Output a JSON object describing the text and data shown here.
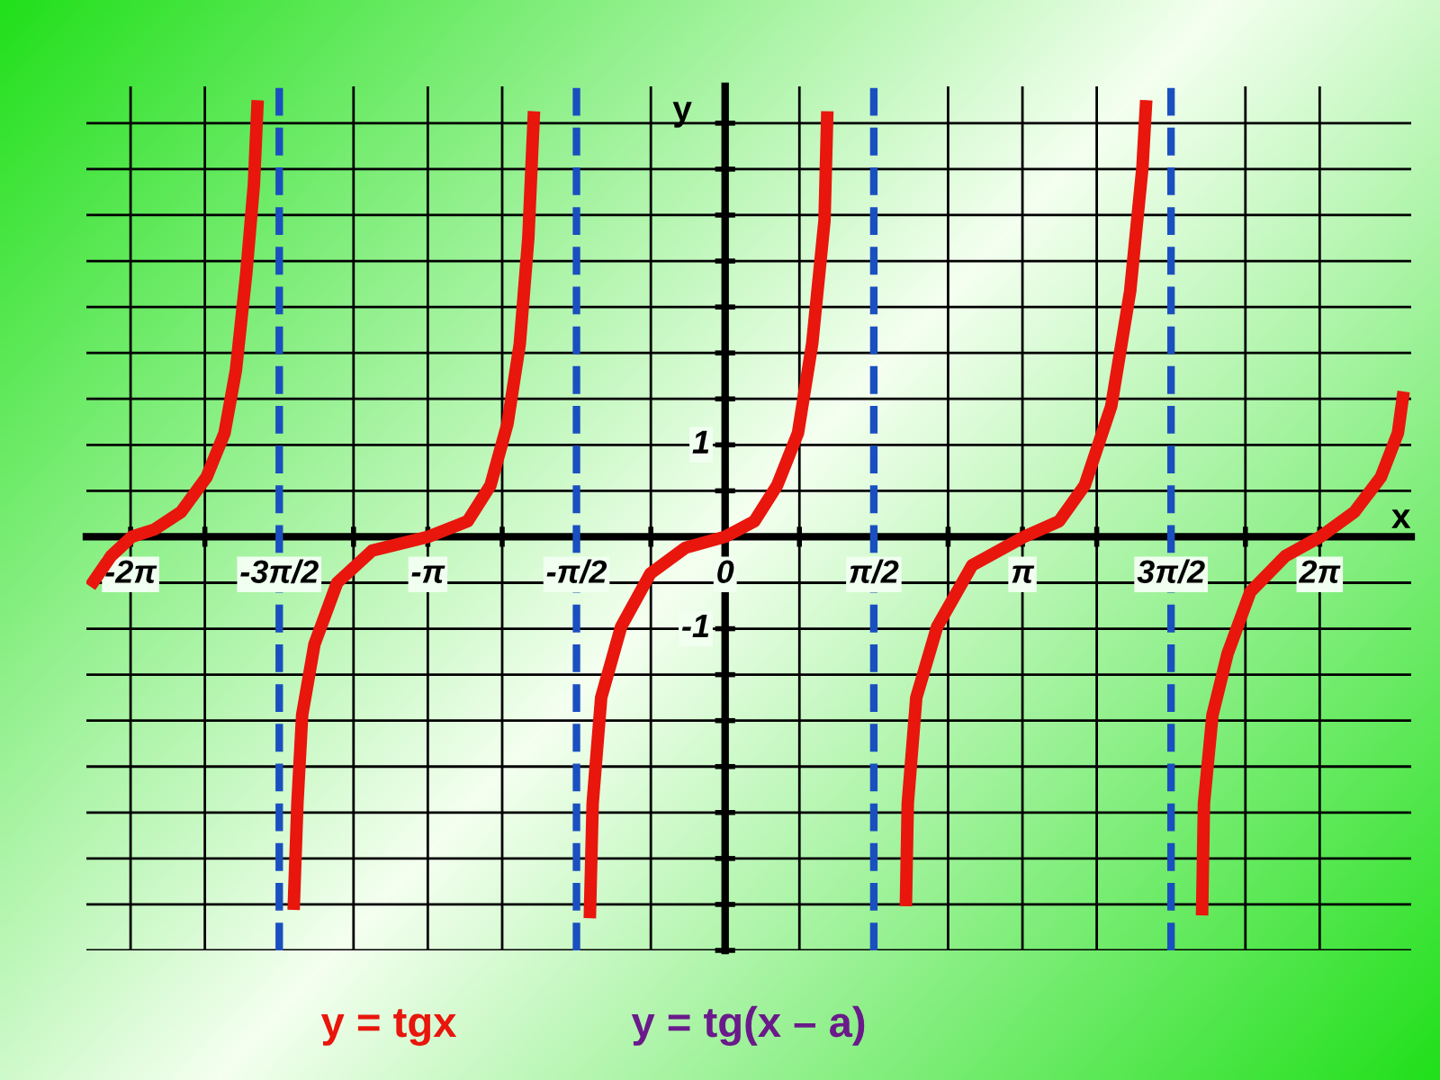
{
  "chart_data": {
    "type": "line",
    "xlabel": "x",
    "ylabel": "y",
    "series": [
      {
        "name": "y = tgx",
        "color": "#e8160c",
        "x": [
          -6.71,
          -6.49,
          -6.27,
          -6.03,
          -5.75,
          -5.48,
          -5.29,
          -5.17,
          -5.06,
          -4.98,
          -4.94,
          -4.7,
          -4.56,
          -4.52,
          -4.47,
          -4.34,
          -4.1,
          -3.73,
          -3.14,
          -2.72,
          -2.48,
          -2.3,
          -2.17,
          -2.08,
          -2.02,
          -1.6,
          -1.43,
          -1.4,
          -1.31,
          -1.1,
          -0.79,
          -0.42,
          0,
          0.31,
          0.55,
          0.77,
          0.92,
          1.05,
          1.08,
          1.6,
          1.91,
          1.93,
          2.02,
          2.24,
          2.61,
          3.16,
          3.53,
          3.8,
          4.08,
          4.28,
          4.41,
          4.45,
          4.8,
          5.04,
          5.06,
          5.15,
          5.31,
          5.55,
          5.92,
          6.29,
          6.65,
          6.93,
          7.11,
          7.17
        ],
        "values": [
          -0.54,
          -0.21,
          0,
          0.08,
          0.27,
          0.65,
          1.13,
          1.81,
          2.87,
          3.83,
          4.75,
          null,
          -4.06,
          -2.9,
          -1.94,
          -1.17,
          -0.5,
          -0.15,
          0,
          0.17,
          0.56,
          1.23,
          2.1,
          3.25,
          4.63,
          null,
          -4.15,
          -2.9,
          -1.75,
          -0.98,
          -0.4,
          -0.12,
          0,
          0.17,
          0.56,
          1.13,
          2.1,
          3.44,
          4.63,
          null,
          -4.02,
          -2.9,
          -1.75,
          -0.98,
          -0.31,
          0,
          0.17,
          0.56,
          1.42,
          2.67,
          4.02,
          4.75,
          null,
          -4.12,
          -2.9,
          -1.94,
          -1.27,
          -0.6,
          -0.21,
          0,
          0.27,
          0.65,
          1.13,
          1.58
        ]
      }
    ],
    "ref_lines": [
      {
        "axis": "x",
        "value": -4.712,
        "label": "-3π/2",
        "color": "#1a4fc0",
        "line_style": "dashed"
      },
      {
        "axis": "x",
        "value": -1.571,
        "label": "-π/2",
        "color": "#1a4fc0",
        "line_style": "dashed"
      },
      {
        "axis": "x",
        "value": 1.571,
        "label": "π/2",
        "color": "#1a4fc0",
        "line_style": "dashed"
      },
      {
        "axis": "x",
        "value": 4.712,
        "label": "3π/2",
        "color": "#1a4fc0",
        "line_style": "dashed"
      }
    ],
    "annotations": [
      "y = tg(x – a)"
    ],
    "xlim": [
      -6.75,
      7.25
    ],
    "ylim": [
      -4.5,
      4.9
    ],
    "xticks": [
      {
        "value": -6.283,
        "label": "-2π"
      },
      {
        "value": -5.498,
        "label": null
      },
      {
        "value": -3.927,
        "label": null
      },
      {
        "value": -3.142,
        "label": "-π"
      },
      {
        "value": -2.356,
        "label": null
      },
      {
        "value": -0.785,
        "label": null
      },
      {
        "value": 0,
        "label": "0"
      },
      {
        "value": 0.785,
        "label": null
      },
      {
        "value": 2.356,
        "label": null
      },
      {
        "value": 3.142,
        "label": "π"
      },
      {
        "value": 3.927,
        "label": null
      },
      {
        "value": 5.498,
        "label": null
      },
      {
        "value": 6.283,
        "label": "2π"
      }
    ],
    "yticks": [
      {
        "value": -4.5,
        "label": null
      },
      {
        "value": -4,
        "label": null
      },
      {
        "value": -3.5,
        "label": null
      },
      {
        "value": -3,
        "label": null
      },
      {
        "value": -2.5,
        "label": null
      },
      {
        "value": -2,
        "label": null
      },
      {
        "value": -1.5,
        "label": null
      },
      {
        "value": -1,
        "label": "-1"
      },
      {
        "value": -0.5,
        "label": null
      },
      {
        "value": 0.5,
        "label": null
      },
      {
        "value": 1,
        "label": "1"
      },
      {
        "value": 1.5,
        "label": null
      },
      {
        "value": 2,
        "label": null
      },
      {
        "value": 2.5,
        "label": null
      },
      {
        "value": 3,
        "label": null
      },
      {
        "value": 3.5,
        "label": null
      },
      {
        "value": 4,
        "label": null
      },
      {
        "value": 4.5,
        "label": null
      }
    ],
    "grid": true,
    "legend": false
  }
}
